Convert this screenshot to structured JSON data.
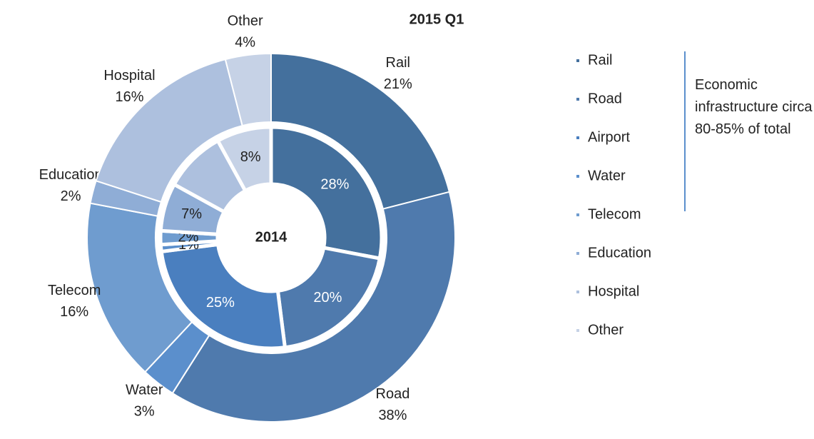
{
  "chart_data": {
    "type": "donut",
    "title": "2015 Q1",
    "categories": [
      "Rail",
      "Road",
      "Airport",
      "Water",
      "Telecom",
      "Education",
      "Hospital",
      "Other"
    ],
    "colors": [
      "#44709d",
      "#4f7aad",
      "#4a7fbf",
      "#5b8fcc",
      "#6f9ccf",
      "#8fadd6",
      "#adc0de",
      "#c6d2e6"
    ],
    "series": [
      {
        "values": [
          21,
          38,
          0,
          3,
          16,
          2,
          16,
          4
        ],
        "value_labels": [
          "21%",
          "38%",
          null,
          "3%",
          "16%",
          "2%",
          "16%",
          "4%"
        ]
      },
      {
        "name": "2014",
        "values": [
          28,
          20,
          25,
          1,
          2,
          7,
          9,
          8
        ],
        "value_labels": [
          "28%",
          "20%",
          "25%",
          "1%",
          "2%",
          "7%",
          null,
          "8%"
        ]
      }
    ],
    "annotation": "Economic infrastructure circa 80-85% of total"
  }
}
